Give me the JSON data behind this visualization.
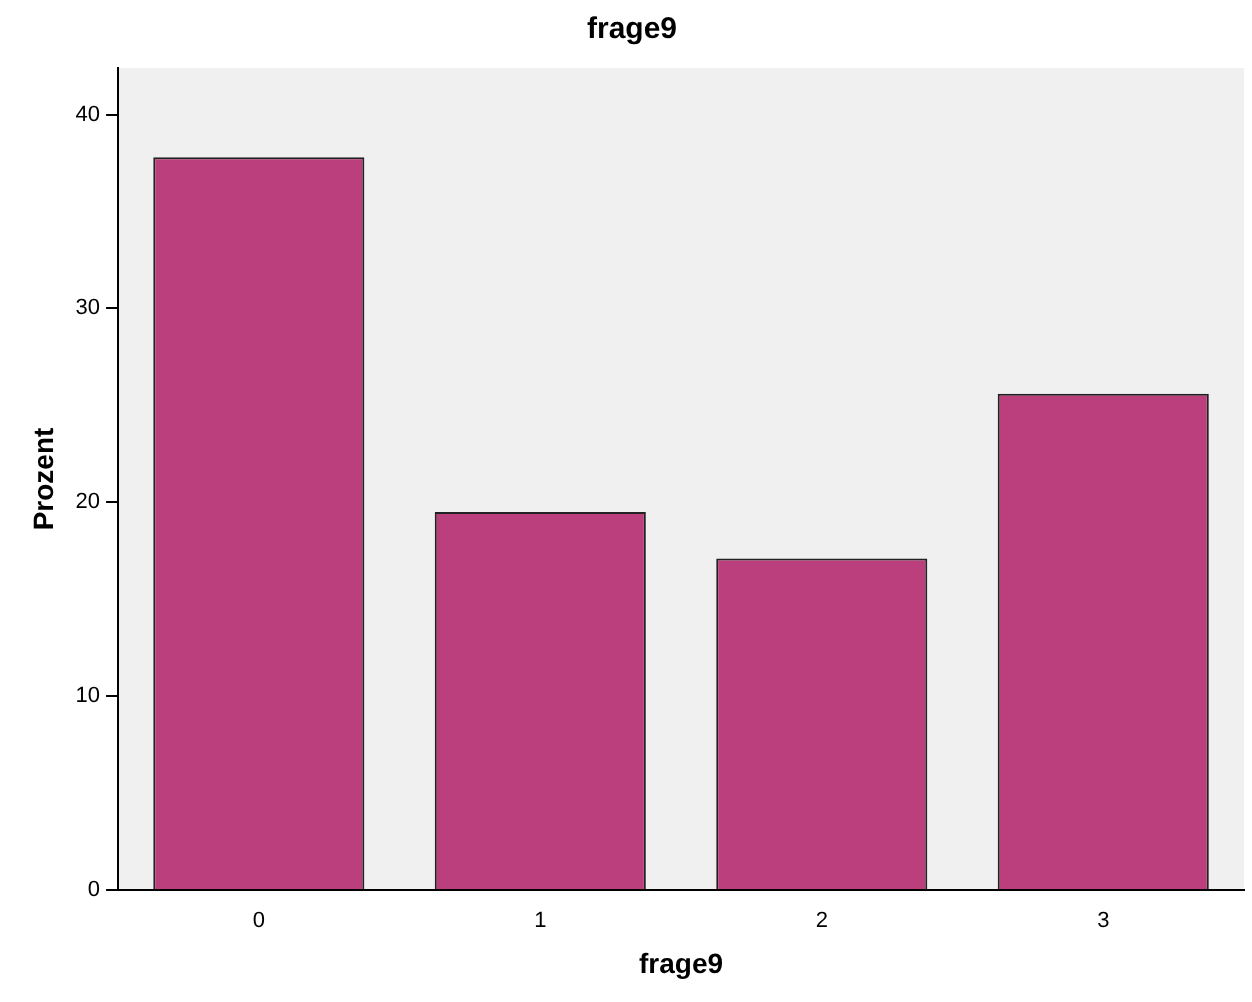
{
  "chart_data": {
    "type": "bar",
    "title": "frage9",
    "xlabel": "frage9",
    "ylabel": "Prozent",
    "categories": [
      "0",
      "1",
      "2",
      "3"
    ],
    "values": [
      37.8,
      19.5,
      17.1,
      25.6
    ],
    "color": "#bc3f7d",
    "ylim": [
      0,
      42.4
    ],
    "yticks": [
      0,
      10,
      20,
      30,
      40
    ],
    "grid": false,
    "legend": false
  }
}
